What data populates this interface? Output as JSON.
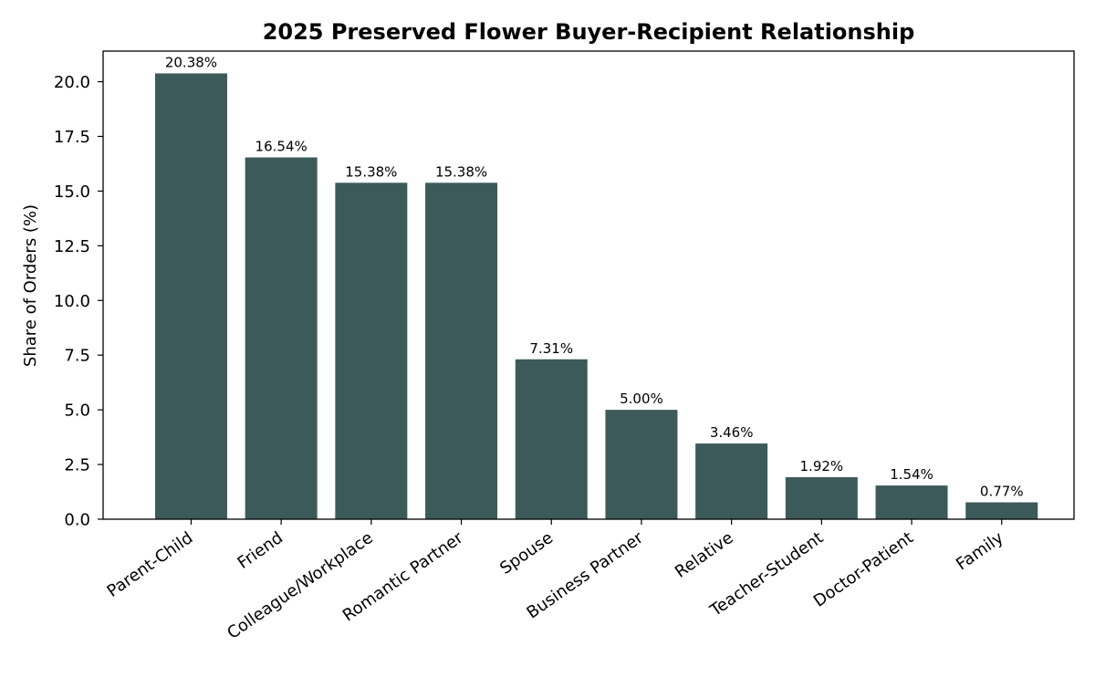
{
  "chart_data": {
    "type": "bar",
    "title": "2025 Preserved Flower Buyer-Recipient Relationship",
    "xlabel": "",
    "ylabel": "Share of Orders (%)",
    "categories": [
      "Parent-Child",
      "Friend",
      "Colleague/Workplace",
      "Romantic Partner",
      "Spouse",
      "Business Partner",
      "Relative",
      "Teacher-Student",
      "Doctor-Patient",
      "Family"
    ],
    "values": [
      20.38,
      16.54,
      15.38,
      15.38,
      7.31,
      5.0,
      3.46,
      1.92,
      1.54,
      0.77
    ],
    "value_labels": [
      "20.38%",
      "16.54%",
      "15.38%",
      "15.38%",
      "7.31%",
      "5.00%",
      "3.46%",
      "1.92%",
      "1.54%",
      "0.77%"
    ],
    "y_ticks": [
      0.0,
      2.5,
      5.0,
      7.5,
      10.0,
      12.5,
      15.0,
      17.5,
      20.0
    ],
    "y_tick_labels": [
      "0.0",
      "2.5",
      "5.0",
      "7.5",
      "10.0",
      "12.5",
      "15.0",
      "17.5",
      "20.0"
    ],
    "ylim": [
      0,
      21.4
    ],
    "grid": false,
    "legend": "none",
    "bar_color": "#3d5a5a"
  }
}
